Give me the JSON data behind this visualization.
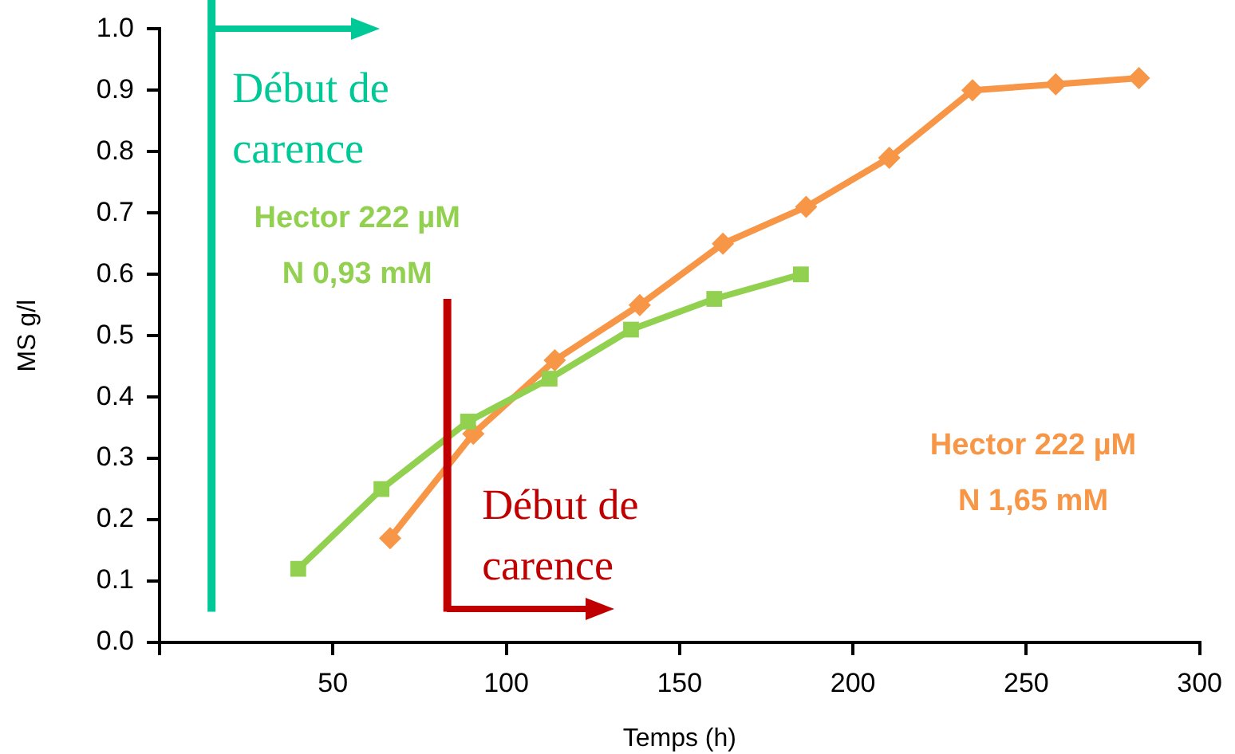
{
  "chart_data": {
    "type": "line",
    "xlabel": "Temps (h)",
    "ylabel": "MS g/l",
    "xlim": [
      0,
      300
    ],
    "xticks": [
      {
        "value": 0,
        "label": null
      },
      50,
      100,
      150,
      200,
      250,
      300
    ],
    "ylim": [
      0,
      1
    ],
    "yticks": [
      {
        "value": 0,
        "label": "0.0"
      },
      0.1,
      0.2,
      0.3,
      0.4,
      0.5,
      0.6,
      0.7,
      0.8,
      0.9,
      {
        "value": 1,
        "label": "1.0"
      }
    ],
    "grid": false,
    "legend": false,
    "line_style": "solid",
    "series": [
      {
        "name": "Hector 222 µM N 0,93 mM",
        "color": "#92d050",
        "marker": "square",
        "x": [
          40,
          64,
          89,
          112.5,
          136,
          160,
          185
        ],
        "values": [
          0.12,
          0.25,
          0.36,
          0.43,
          0.51,
          0.56,
          0.6
        ]
      },
      {
        "name": "Hector 222 µM N 1,65 mM",
        "color": "#f79646",
        "marker": "diamond",
        "x": [
          66.5,
          90.5,
          114,
          138.5,
          162.5,
          186.5,
          210.5,
          234.5,
          258.5,
          282.5
        ],
        "values": [
          0.17,
          0.34,
          0.46,
          0.55,
          0.65,
          0.71,
          0.79,
          0.9,
          0.91,
          0.92
        ]
      }
    ],
    "ref_lines": [
      {
        "axis": "x",
        "value": 15,
        "label": "Début de carence",
        "color": "#00c896"
      },
      {
        "axis": "x",
        "value": 83,
        "label": "Début de carence",
        "color": "#c00000"
      }
    ]
  }
}
